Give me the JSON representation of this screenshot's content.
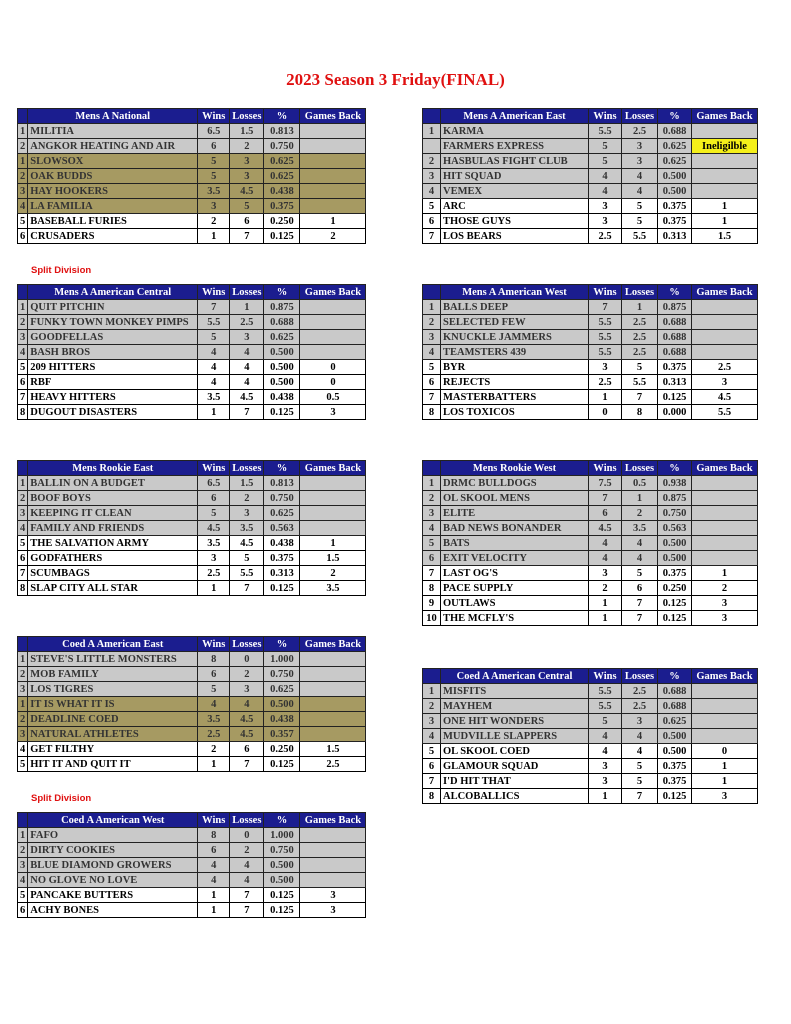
{
  "title": "2023 Season 3 Friday(FINAL)",
  "columns": {
    "wins": "Wins",
    "losses": "Losses",
    "pct": "%",
    "gb": "Games Back"
  },
  "colors": {
    "header": "#1b1d8f",
    "playoff_row": "#c9c9c9",
    "split_row": "#a69a62",
    "ineligible": "#f5f01a",
    "title": "#e01010"
  },
  "split_note": "Split Division",
  "tables": [
    {
      "name": "Mens A National",
      "split_note": true,
      "rows": [
        [
          "1",
          "MILITIA",
          "6.5",
          "1.5",
          "0.813",
          "",
          "g"
        ],
        [
          "2",
          "ANGKOR HEATING AND AIR",
          "6",
          "2",
          "0.750",
          "",
          "g"
        ],
        [
          "1",
          "SLOWSOX",
          "5",
          "3",
          "0.625",
          "",
          "o"
        ],
        [
          "2",
          "OAK BUDDS",
          "5",
          "3",
          "0.625",
          "",
          "o"
        ],
        [
          "3",
          "HAY HOOKERS",
          "3.5",
          "4.5",
          "0.438",
          "",
          "o"
        ],
        [
          "4",
          "LA FAMILIA",
          "3",
          "5",
          "0.375",
          "",
          "o"
        ],
        [
          "5",
          "BASEBALL FURIES",
          "2",
          "6",
          "0.250",
          "1",
          "w"
        ],
        [
          "6",
          "CRUSADERS",
          "1",
          "7",
          "0.125",
          "2",
          "w"
        ]
      ]
    },
    {
      "name": "Mens A American East",
      "rows": [
        [
          "1",
          "KARMA",
          "5.5",
          "2.5",
          "0.688",
          "",
          "g"
        ],
        [
          "",
          "FARMERS EXPRESS",
          "5",
          "3",
          "0.625",
          "Ineligilble",
          "g"
        ],
        [
          "2",
          "HASBULAS FIGHT CLUB",
          "5",
          "3",
          "0.625",
          "",
          "g"
        ],
        [
          "3",
          "HIT SQUAD",
          "4",
          "4",
          "0.500",
          "",
          "g"
        ],
        [
          "4",
          "VEMEX",
          "4",
          "4",
          "0.500",
          "",
          "g"
        ],
        [
          "5",
          "ARC",
          "3",
          "5",
          "0.375",
          "1",
          "w"
        ],
        [
          "6",
          "THOSE GUYS",
          "3",
          "5",
          "0.375",
          "1",
          "w"
        ],
        [
          "7",
          "LOS BEARS",
          "2.5",
          "5.5",
          "0.313",
          "1.5",
          "w"
        ]
      ]
    },
    {
      "name": "Mens A American Central",
      "rows": [
        [
          "1",
          "QUIT PITCHIN",
          "7",
          "1",
          "0.875",
          "",
          "g"
        ],
        [
          "2",
          "FUNKY TOWN MONKEY PIMPS",
          "5.5",
          "2.5",
          "0.688",
          "",
          "g"
        ],
        [
          "3",
          "GOODFELLAS",
          "5",
          "3",
          "0.625",
          "",
          "g"
        ],
        [
          "4",
          "BASH BROS",
          "4",
          "4",
          "0.500",
          "",
          "g"
        ],
        [
          "5",
          "209 HITTERS",
          "4",
          "4",
          "0.500",
          "0",
          "w"
        ],
        [
          "6",
          "RBF",
          "4",
          "4",
          "0.500",
          "0",
          "w"
        ],
        [
          "7",
          "HEAVY HITTERS",
          "3.5",
          "4.5",
          "0.438",
          "0.5",
          "w"
        ],
        [
          "8",
          "DUGOUT DISASTERS",
          "1",
          "7",
          "0.125",
          "3",
          "w"
        ]
      ]
    },
    {
      "name": "Mens A American West",
      "rows": [
        [
          "1",
          "BALLS DEEP",
          "7",
          "1",
          "0.875",
          "",
          "g"
        ],
        [
          "2",
          "SELECTED FEW",
          "5.5",
          "2.5",
          "0.688",
          "",
          "g"
        ],
        [
          "3",
          "KNUCKLE JAMMERS",
          "5.5",
          "2.5",
          "0.688",
          "",
          "g"
        ],
        [
          "4",
          "TEAMSTERS 439",
          "5.5",
          "2.5",
          "0.688",
          "",
          "g"
        ],
        [
          "5",
          "BYR",
          "3",
          "5",
          "0.375",
          "2.5",
          "w"
        ],
        [
          "6",
          "REJECTS",
          "2.5",
          "5.5",
          "0.313",
          "3",
          "w"
        ],
        [
          "7",
          "MASTERBATTERS",
          "1",
          "7",
          "0.125",
          "4.5",
          "w"
        ],
        [
          "8",
          "LOS TOXICOS",
          "0",
          "8",
          "0.000",
          "5.5",
          "w"
        ]
      ]
    },
    {
      "name": "Mens Rookie East",
      "rows": [
        [
          "1",
          "BALLIN ON A BUDGET",
          "6.5",
          "1.5",
          "0.813",
          "",
          "g"
        ],
        [
          "2",
          "BOOF BOYS",
          "6",
          "2",
          "0.750",
          "",
          "g"
        ],
        [
          "3",
          "KEEPING IT CLEAN",
          "5",
          "3",
          "0.625",
          "",
          "g"
        ],
        [
          "4",
          "FAMILY AND FRIENDS",
          "4.5",
          "3.5",
          "0.563",
          "",
          "g"
        ],
        [
          "5",
          "THE SALVATION ARMY",
          "3.5",
          "4.5",
          "0.438",
          "1",
          "w"
        ],
        [
          "6",
          "GODFATHERS",
          "3",
          "5",
          "0.375",
          "1.5",
          "w"
        ],
        [
          "7",
          "SCUMBAGS",
          "2.5",
          "5.5",
          "0.313",
          "2",
          "w"
        ],
        [
          "8",
          "SLAP CITY ALL STAR",
          "1",
          "7",
          "0.125",
          "3.5",
          "w"
        ]
      ]
    },
    {
      "name": "Mens Rookie West",
      "rows": [
        [
          "1",
          "DRMC BULLDOGS",
          "7.5",
          "0.5",
          "0.938",
          "",
          "g"
        ],
        [
          "2",
          "OL SKOOL MENS",
          "7",
          "1",
          "0.875",
          "",
          "g"
        ],
        [
          "3",
          "ELITE",
          "6",
          "2",
          "0.750",
          "",
          "g"
        ],
        [
          "4",
          "BAD NEWS BONANDER",
          "4.5",
          "3.5",
          "0.563",
          "",
          "g"
        ],
        [
          "5",
          "BATS",
          "4",
          "4",
          "0.500",
          "",
          "g"
        ],
        [
          "6",
          "EXIT VELOCITY",
          "4",
          "4",
          "0.500",
          "",
          "g"
        ],
        [
          "7",
          "LAST OG'S",
          "3",
          "5",
          "0.375",
          "1",
          "w"
        ],
        [
          "8",
          "PACE SUPPLY",
          "2",
          "6",
          "0.250",
          "2",
          "w"
        ],
        [
          "9",
          "OUTLAWS",
          "1",
          "7",
          "0.125",
          "3",
          "w"
        ],
        [
          "10",
          "THE MCFLY'S",
          "1",
          "7",
          "0.125",
          "3",
          "w"
        ]
      ]
    },
    {
      "name": "Coed A American East",
      "split_note": true,
      "rows": [
        [
          "1",
          "STEVE'S LITTLE MONSTERS",
          "8",
          "0",
          "1.000",
          "",
          "g"
        ],
        [
          "2",
          "MOB FAMILY",
          "6",
          "2",
          "0.750",
          "",
          "g"
        ],
        [
          "3",
          "LOS TIGRES",
          "5",
          "3",
          "0.625",
          "",
          "g"
        ],
        [
          "1",
          "IT IS WHAT IT IS",
          "4",
          "4",
          "0.500",
          "",
          "o"
        ],
        [
          "2",
          "DEADLINE COED",
          "3.5",
          "4.5",
          "0.438",
          "",
          "o"
        ],
        [
          "3",
          "NATURAL ATHLETES",
          "2.5",
          "4.5",
          "0.357",
          "",
          "o"
        ],
        [
          "4",
          "GET FILTHY",
          "2",
          "6",
          "0.250",
          "1.5",
          "w"
        ],
        [
          "5",
          "HIT IT AND QUIT IT",
          "1",
          "7",
          "0.125",
          "2.5",
          "w"
        ]
      ]
    },
    {
      "name": "Coed A American Central",
      "rows": [
        [
          "1",
          "MISFITS",
          "5.5",
          "2.5",
          "0.688",
          "",
          "g"
        ],
        [
          "2",
          "MAYHEM",
          "5.5",
          "2.5",
          "0.688",
          "",
          "g"
        ],
        [
          "3",
          "ONE HIT WONDERS",
          "5",
          "3",
          "0.625",
          "",
          "g"
        ],
        [
          "4",
          "MUDVILLE SLAPPERS",
          "4",
          "4",
          "0.500",
          "",
          "g"
        ],
        [
          "5",
          "OL SKOOL COED",
          "4",
          "4",
          "0.500",
          "0",
          "w"
        ],
        [
          "6",
          "GLAMOUR SQUAD",
          "3",
          "5",
          "0.375",
          "1",
          "w"
        ],
        [
          "7",
          "I'D HIT THAT",
          "3",
          "5",
          "0.375",
          "1",
          "w"
        ],
        [
          "8",
          "ALCOBALLICS",
          "1",
          "7",
          "0.125",
          "3",
          "w"
        ]
      ]
    },
    {
      "name": "Coed A American West",
      "rows": [
        [
          "1",
          "FAFO",
          "8",
          "0",
          "1.000",
          "",
          "g"
        ],
        [
          "2",
          "DIRTY COOKIES",
          "6",
          "2",
          "0.750",
          "",
          "g"
        ],
        [
          "3",
          "BLUE DIAMOND GROWERS",
          "4",
          "4",
          "0.500",
          "",
          "g"
        ],
        [
          "4",
          "NO GLOVE NO LOVE",
          "4",
          "4",
          "0.500",
          "",
          "g"
        ],
        [
          "5",
          "PANCAKE BUTTERS",
          "1",
          "7",
          "0.125",
          "3",
          "w"
        ],
        [
          "6",
          "ACHY BONES",
          "1",
          "7",
          "0.125",
          "3",
          "w"
        ]
      ]
    }
  ]
}
